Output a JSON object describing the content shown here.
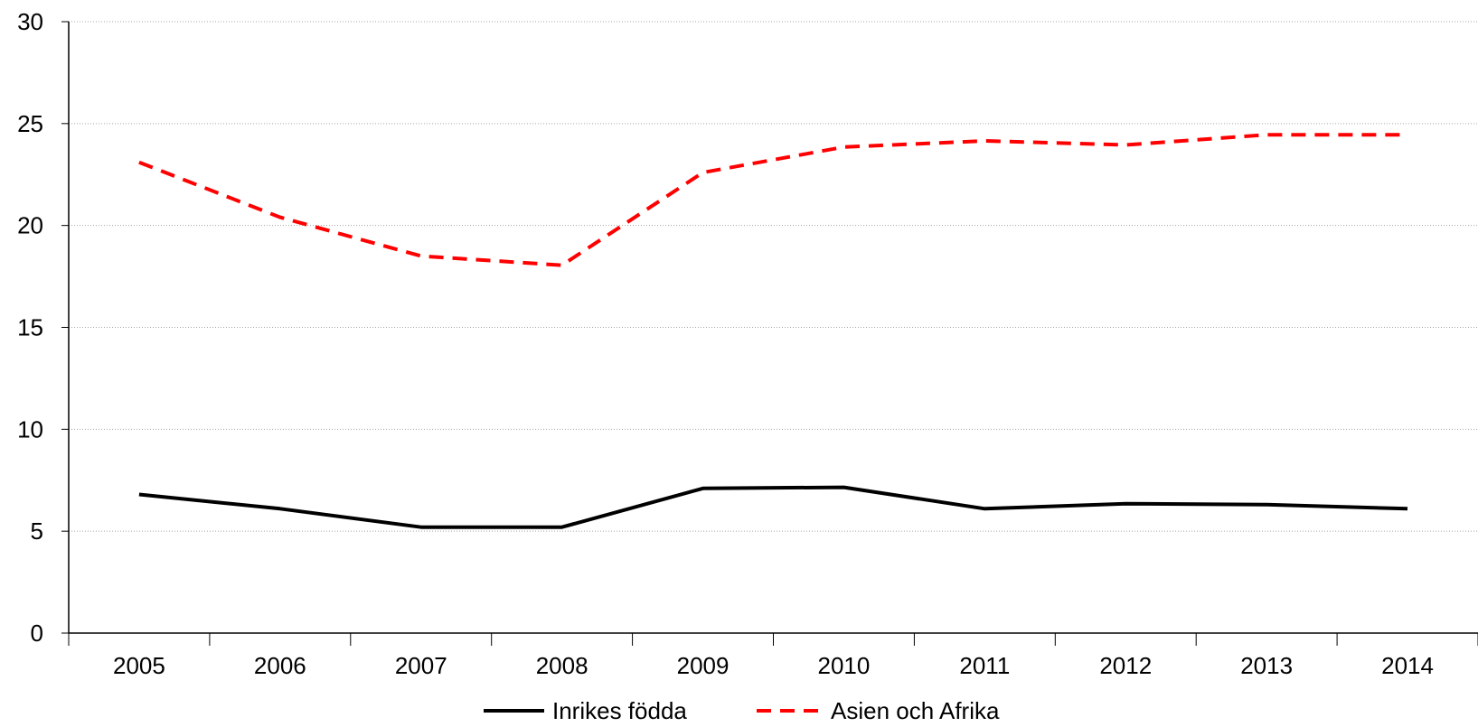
{
  "chart_data": {
    "type": "line",
    "title": "",
    "xlabel": "",
    "ylabel": "",
    "categories": [
      "2005",
      "2006",
      "2007",
      "2008",
      "2009",
      "2010",
      "2011",
      "2012",
      "2013",
      "2014"
    ],
    "ylim": [
      0,
      30
    ],
    "yticks": [
      "0",
      "5",
      "10",
      "15",
      "20",
      "25",
      "30"
    ],
    "grid": "horizontal dotted",
    "legend_position": "bottom",
    "series": [
      {
        "name": "Inrikes födda",
        "color": "#000000",
        "line_style": "solid",
        "values": [
          6.8,
          6.1,
          5.2,
          5.2,
          7.1,
          7.15,
          6.1,
          6.35,
          6.3,
          6.1
        ]
      },
      {
        "name": "Asien och Afrika",
        "color": "#ff0000",
        "line_style": "dashed",
        "values": [
          23.1,
          20.4,
          18.5,
          18.05,
          22.6,
          23.85,
          24.15,
          23.95,
          24.45,
          24.45
        ]
      }
    ]
  }
}
